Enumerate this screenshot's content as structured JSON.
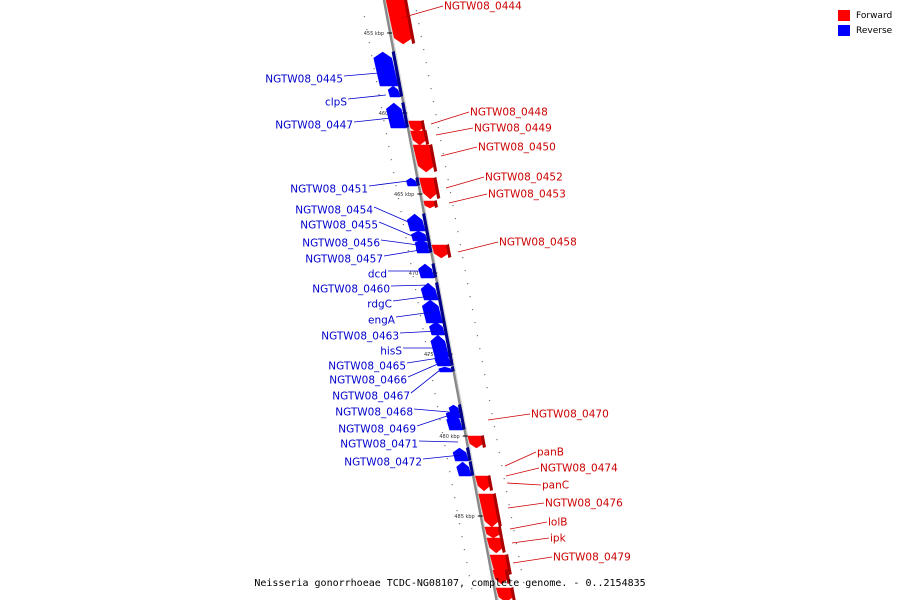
{
  "caption": "Neisseria gonorrhoeae TCDC-NG08107, complete genome. - 0..2154835",
  "legend": [
    {
      "label": "Forward",
      "color": "#ff0000"
    },
    {
      "label": "Reverse",
      "color": "#0000ff"
    }
  ],
  "colors": {
    "forward": "#ff0000",
    "reverse": "#0000ff",
    "label_forward": "#cc0000",
    "label_reverse": "#0000cc",
    "backbone": "#888888"
  },
  "ticks": [
    "455 kbp",
    "460 kbp",
    "465 kbp",
    "470 kbp",
    "475 kbp",
    "480 kbp",
    "485 kbp"
  ],
  "genes": [
    {
      "name": "NGTW08_0444",
      "strand": "forward"
    },
    {
      "name": "NGTW08_0445",
      "strand": "reverse"
    },
    {
      "name": "clpS",
      "strand": "reverse"
    },
    {
      "name": "NGTW08_0447",
      "strand": "reverse"
    },
    {
      "name": "NGTW08_0448",
      "strand": "forward"
    },
    {
      "name": "NGTW08_0449",
      "strand": "forward"
    },
    {
      "name": "NGTW08_0450",
      "strand": "forward"
    },
    {
      "name": "NGTW08_0451",
      "strand": "reverse"
    },
    {
      "name": "NGTW08_0452",
      "strand": "forward"
    },
    {
      "name": "NGTW08_0453",
      "strand": "forward"
    },
    {
      "name": "NGTW08_0454",
      "strand": "reverse"
    },
    {
      "name": "NGTW08_0455",
      "strand": "reverse"
    },
    {
      "name": "NGTW08_0456",
      "strand": "reverse"
    },
    {
      "name": "NGTW08_0457",
      "strand": "reverse"
    },
    {
      "name": "NGTW08_0458",
      "strand": "forward"
    },
    {
      "name": "dcd",
      "strand": "reverse"
    },
    {
      "name": "NGTW08_0460",
      "strand": "reverse"
    },
    {
      "name": "rdgC",
      "strand": "reverse"
    },
    {
      "name": "engA",
      "strand": "reverse"
    },
    {
      "name": "NGTW08_0463",
      "strand": "reverse"
    },
    {
      "name": "hisS",
      "strand": "reverse"
    },
    {
      "name": "NGTW08_0465",
      "strand": "reverse"
    },
    {
      "name": "NGTW08_0466",
      "strand": "reverse"
    },
    {
      "name": "NGTW08_0467",
      "strand": "reverse"
    },
    {
      "name": "NGTW08_0468",
      "strand": "reverse"
    },
    {
      "name": "NGTW08_0469",
      "strand": "reverse"
    },
    {
      "name": "NGTW08_0470",
      "strand": "forward"
    },
    {
      "name": "NGTW08_0471",
      "strand": "reverse"
    },
    {
      "name": "NGTW08_0472",
      "strand": "reverse"
    },
    {
      "name": "panB",
      "strand": "forward"
    },
    {
      "name": "NGTW08_0474",
      "strand": "forward"
    },
    {
      "name": "panC",
      "strand": "forward"
    },
    {
      "name": "NGTW08_0476",
      "strand": "forward"
    },
    {
      "name": "lolB",
      "strand": "forward"
    },
    {
      "name": "ipk",
      "strand": "forward"
    },
    {
      "name": "NGTW08_0479",
      "strand": "forward"
    }
  ]
}
